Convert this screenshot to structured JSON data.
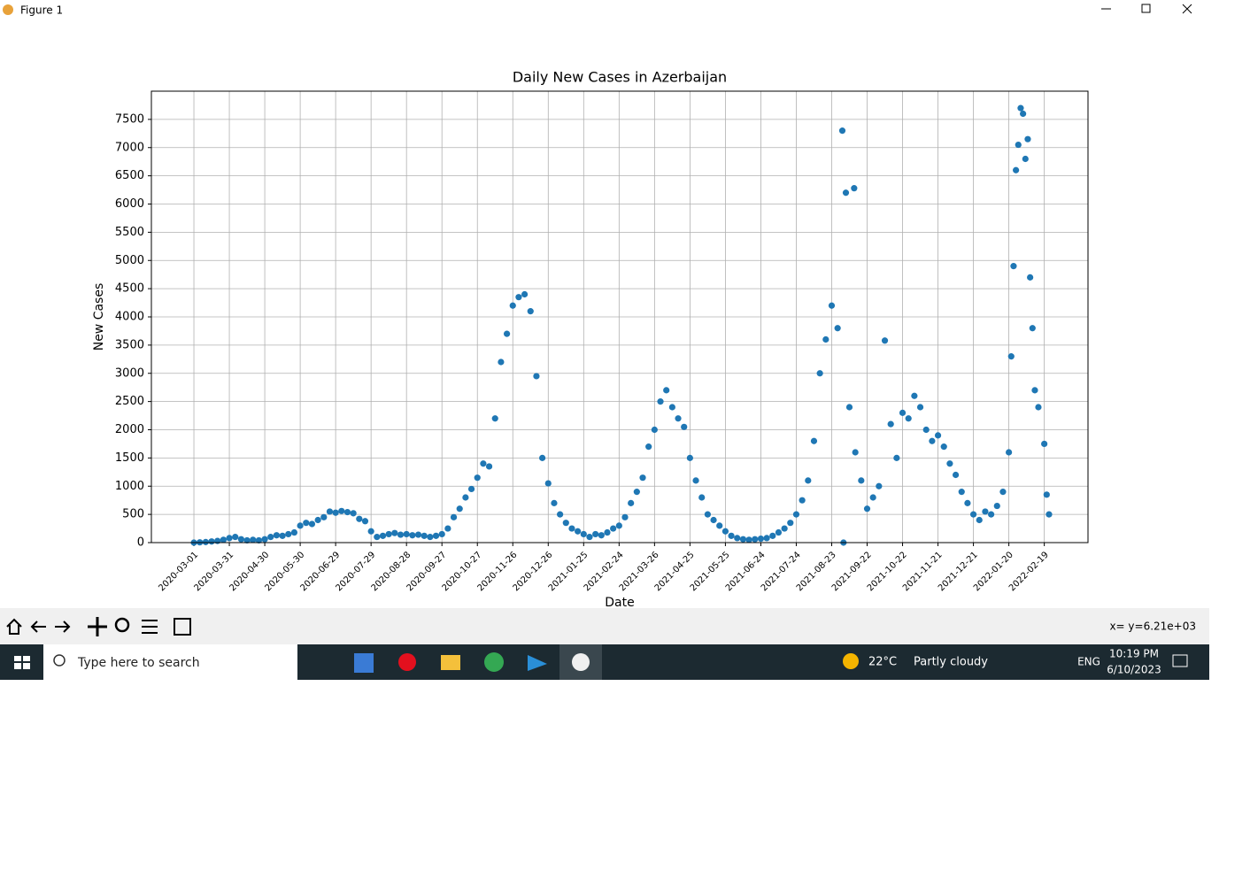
{
  "window": {
    "title": "Figure 1"
  },
  "chart_data": {
    "type": "scatter",
    "title": "Daily New Cases in Azerbaijan",
    "x_label": "Date",
    "y_label": "New Cases",
    "color": "#1f77b4",
    "grid": true,
    "xlim": [
      "2020-01-25",
      "2022-03-28"
    ],
    "ylim": [
      0,
      8000
    ],
    "xticks": [
      "2020-03-01",
      "2020-03-31",
      "2020-04-30",
      "2020-05-30",
      "2020-06-29",
      "2020-07-29",
      "2020-08-28",
      "2020-09-27",
      "2020-10-27",
      "2020-11-26",
      "2020-12-26",
      "2021-01-25",
      "2021-02-24",
      "2021-03-26",
      "2021-04-25",
      "2021-05-25",
      "2021-06-24",
      "2021-07-24",
      "2021-08-23",
      "2021-09-22",
      "2021-10-22",
      "2021-11-21",
      "2021-12-21",
      "2022-01-20",
      "2022-02-19"
    ],
    "yticks": [
      0,
      500,
      1000,
      1500,
      2000,
      2500,
      3000,
      3500,
      4000,
      4500,
      5000,
      5500,
      6000,
      6500,
      7000,
      7500
    ],
    "x": [
      "2020-03-01",
      "2020-03-06",
      "2020-03-11",
      "2020-03-16",
      "2020-03-21",
      "2020-03-26",
      "2020-03-31",
      "2020-04-05",
      "2020-04-10",
      "2020-04-15",
      "2020-04-20",
      "2020-04-25",
      "2020-04-30",
      "2020-05-05",
      "2020-05-10",
      "2020-05-15",
      "2020-05-20",
      "2020-05-25",
      "2020-05-30",
      "2020-06-04",
      "2020-06-09",
      "2020-06-14",
      "2020-06-19",
      "2020-06-24",
      "2020-06-29",
      "2020-07-04",
      "2020-07-09",
      "2020-07-14",
      "2020-07-19",
      "2020-07-24",
      "2020-07-29",
      "2020-08-03",
      "2020-08-08",
      "2020-08-13",
      "2020-08-18",
      "2020-08-23",
      "2020-08-28",
      "2020-09-02",
      "2020-09-07",
      "2020-09-12",
      "2020-09-17",
      "2020-09-22",
      "2020-09-27",
      "2020-10-02",
      "2020-10-07",
      "2020-10-12",
      "2020-10-17",
      "2020-10-22",
      "2020-10-27",
      "2020-11-01",
      "2020-11-06",
      "2020-11-11",
      "2020-11-16",
      "2020-11-21",
      "2020-11-26",
      "2020-12-01",
      "2020-12-06",
      "2020-12-11",
      "2020-12-16",
      "2020-12-21",
      "2020-12-26",
      "2020-12-31",
      "2021-01-05",
      "2021-01-10",
      "2021-01-15",
      "2021-01-20",
      "2021-01-25",
      "2021-01-30",
      "2021-02-04",
      "2021-02-09",
      "2021-02-14",
      "2021-02-19",
      "2021-02-24",
      "2021-03-01",
      "2021-03-06",
      "2021-03-11",
      "2021-03-16",
      "2021-03-21",
      "2021-03-26",
      "2021-03-31",
      "2021-04-05",
      "2021-04-10",
      "2021-04-15",
      "2021-04-20",
      "2021-04-25",
      "2021-04-30",
      "2021-05-05",
      "2021-05-10",
      "2021-05-15",
      "2021-05-20",
      "2021-05-25",
      "2021-05-30",
      "2021-06-04",
      "2021-06-09",
      "2021-06-14",
      "2021-06-19",
      "2021-06-24",
      "2021-06-29",
      "2021-07-04",
      "2021-07-09",
      "2021-07-14",
      "2021-07-19",
      "2021-07-24",
      "2021-07-29",
      "2021-08-03",
      "2021-08-08",
      "2021-08-13",
      "2021-08-18",
      "2021-08-23",
      "2021-08-28",
      "2021-09-01",
      "2021-09-02",
      "2021-09-04",
      "2021-09-07",
      "2021-09-11",
      "2021-09-12",
      "2021-09-17",
      "2021-09-22",
      "2021-09-27",
      "2021-10-02",
      "2021-10-07",
      "2021-10-12",
      "2021-10-17",
      "2021-10-22",
      "2021-10-27",
      "2021-11-01",
      "2021-11-06",
      "2021-11-11",
      "2021-11-16",
      "2021-11-21",
      "2021-11-26",
      "2021-12-01",
      "2021-12-06",
      "2021-12-11",
      "2021-12-16",
      "2021-12-21",
      "2021-12-26",
      "2021-12-31",
      "2022-01-05",
      "2022-01-10",
      "2022-01-15",
      "2022-01-20",
      "2022-01-22",
      "2022-01-24",
      "2022-01-26",
      "2022-01-28",
      "2022-01-30",
      "2022-02-01",
      "2022-02-03",
      "2022-02-05",
      "2022-02-07",
      "2022-02-09",
      "2022-02-11",
      "2022-02-14",
      "2022-02-19",
      "2022-02-21",
      "2022-02-23"
    ],
    "values": [
      0,
      5,
      10,
      20,
      30,
      50,
      80,
      100,
      60,
      40,
      50,
      40,
      60,
      100,
      130,
      120,
      150,
      180,
      300,
      350,
      330,
      400,
      450,
      550,
      530,
      560,
      540,
      520,
      420,
      380,
      200,
      100,
      120,
      150,
      170,
      140,
      150,
      130,
      140,
      120,
      100,
      120,
      150,
      250,
      450,
      600,
      800,
      950,
      1150,
      1400,
      1350,
      2200,
      3200,
      3700,
      4200,
      4350,
      4400,
      4100,
      2950,
      1500,
      1050,
      700,
      500,
      350,
      250,
      200,
      150,
      100,
      150,
      130,
      180,
      250,
      300,
      450,
      700,
      900,
      1150,
      1700,
      2000,
      2500,
      2700,
      2400,
      2200,
      2050,
      1500,
      1100,
      800,
      500,
      400,
      300,
      200,
      120,
      80,
      60,
      50,
      60,
      70,
      80,
      120,
      180,
      250,
      350,
      500,
      750,
      1100,
      1800,
      3000,
      3600,
      4200,
      3800,
      7300,
      0,
      6200,
      2400,
      6280,
      1600,
      1100,
      600,
      800,
      1000,
      3580,
      2100,
      1500,
      2300,
      2200,
      2600,
      2400,
      2000,
      1800,
      1900,
      1700,
      1400,
      1200,
      900,
      700,
      500,
      400,
      550,
      500,
      650,
      900,
      1600,
      3300,
      4900,
      6600,
      7050,
      7700,
      7600,
      6800,
      7150,
      4700,
      3800,
      2700,
      2400,
      1750,
      850,
      500
    ]
  },
  "toolbar": {
    "status": "x= y=6.21e+03"
  },
  "taskbar": {
    "search": "Type here to search",
    "temperature": "22°C",
    "weather": "Partly cloudy",
    "language": "ENG",
    "time": "10:19 PM",
    "date": "6/10/2023"
  }
}
